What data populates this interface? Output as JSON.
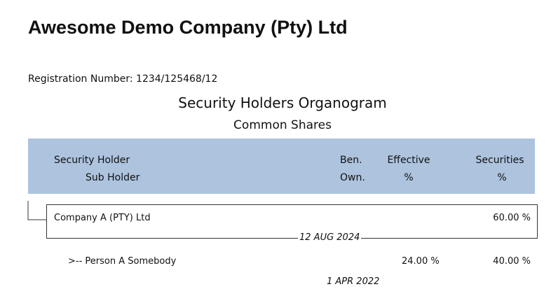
{
  "header": {
    "company": "Awesome Demo Company (Pty) Ltd",
    "registration": "Registration Number: 1234/125468/12",
    "title": "Security Holders Organogram",
    "subtitle": "Common Shares"
  },
  "table": {
    "columns": [
      [
        "Security Holder",
        "Sub Holder"
      ],
      [
        "Ben.",
        "Own."
      ],
      [
        "Effective",
        "%"
      ],
      [
        "Securities",
        "%"
      ]
    ],
    "rows": [
      {
        "name": "Company A (PTY) Ltd",
        "securities": "60.00 %",
        "date": "12 AUG 2024"
      },
      {
        "name": ">-- Person A Somebody",
        "effective": "24.00 %",
        "securities": "40.00 %",
        "date": "1 APR 2022"
      }
    ]
  }
}
